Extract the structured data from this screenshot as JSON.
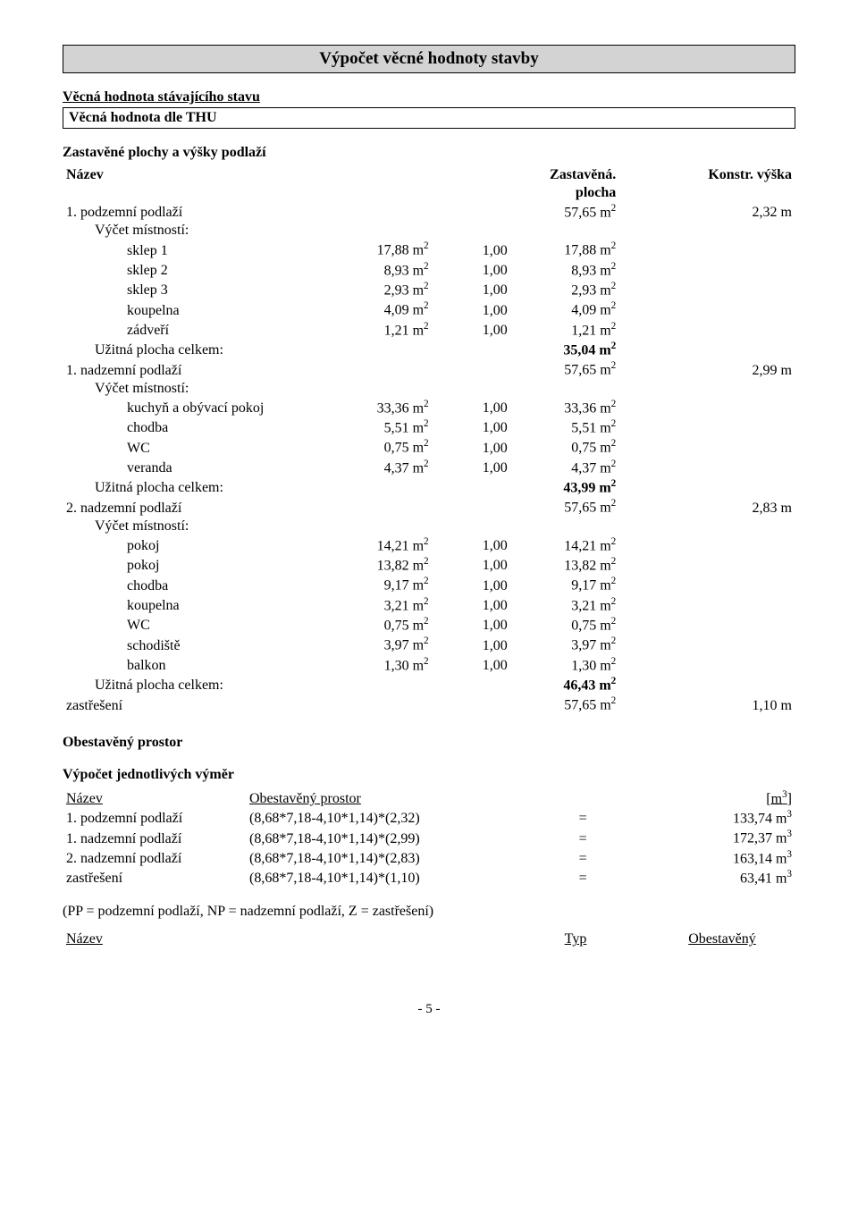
{
  "header": {
    "title": "Výpočet věcné hodnoty stavby"
  },
  "preface": {
    "line1": "Věcná hodnota stávajícího stavu",
    "box_line": "Věcná hodnota dle THU"
  },
  "areas": {
    "heading": "Zastavěné plochy a výšky podlaží",
    "col_name": "Název",
    "col_area_l1": "Zastavěná.",
    "col_area_l2": "plocha",
    "col_height": "Konstr. výška",
    "floors": [
      {
        "name": "1. podzemní podlaží",
        "area": "57,65 m²",
        "height": "2,32 m",
        "rooms_label": "Výčet místností:",
        "rooms": [
          {
            "name": "sklep 1",
            "raw": "17,88 m²",
            "coef": "1,00",
            "val": "17,88 m²"
          },
          {
            "name": "sklep 2",
            "raw": "8,93 m²",
            "coef": "1,00",
            "val": "8,93 m²"
          },
          {
            "name": "sklep 3",
            "raw": "2,93 m²",
            "coef": "1,00",
            "val": "2,93 m²"
          },
          {
            "name": "koupelna",
            "raw": "4,09 m²",
            "coef": "1,00",
            "val": "4,09 m²"
          },
          {
            "name": "zádveří",
            "raw": "1,21 m²",
            "coef": "1,00",
            "val": "1,21 m²"
          }
        ],
        "usable_label": "Užitná plocha celkem:",
        "usable_val": "35,04 m²"
      },
      {
        "name": "1. nadzemní podlaží",
        "area": "57,65 m²",
        "height": "2,99 m",
        "rooms_label": "Výčet místností:",
        "rooms": [
          {
            "name": "kuchyň a obývací pokoj",
            "raw": "33,36 m²",
            "coef": "1,00",
            "val": "33,36 m²"
          },
          {
            "name": "chodba",
            "raw": "5,51 m²",
            "coef": "1,00",
            "val": "5,51 m²"
          },
          {
            "name": "WC",
            "raw": "0,75 m²",
            "coef": "1,00",
            "val": "0,75 m²"
          },
          {
            "name": "veranda",
            "raw": "4,37 m²",
            "coef": "1,00",
            "val": "4,37 m²"
          }
        ],
        "usable_label": "Užitná plocha celkem:",
        "usable_val": "43,99 m²"
      },
      {
        "name": "2. nadzemní podlaží",
        "area": "57,65 m²",
        "height": "2,83 m",
        "rooms_label": "Výčet místností:",
        "rooms": [
          {
            "name": "pokoj",
            "raw": "14,21 m²",
            "coef": "1,00",
            "val": "14,21 m²"
          },
          {
            "name": "pokoj",
            "raw": "13,82 m²",
            "coef": "1,00",
            "val": "13,82 m²"
          },
          {
            "name": "chodba",
            "raw": "9,17 m²",
            "coef": "1,00",
            "val": "9,17 m²"
          },
          {
            "name": "koupelna",
            "raw": "3,21 m²",
            "coef": "1,00",
            "val": "3,21 m²"
          },
          {
            "name": "WC",
            "raw": "0,75 m²",
            "coef": "1,00",
            "val": "0,75 m²"
          },
          {
            "name": "schodiště",
            "raw": "3,97 m²",
            "coef": "1,00",
            "val": "3,97 m²"
          },
          {
            "name": "balkon",
            "raw": "1,30 m²",
            "coef": "1,00",
            "val": "1,30 m²"
          }
        ],
        "usable_label": "Užitná plocha celkem:",
        "usable_val": "46,43 m²"
      }
    ],
    "roof": {
      "name": "zastřešení",
      "area": "57,65 m²",
      "height": "1,10 m"
    }
  },
  "volume": {
    "heading": "Obestavěný prostor",
    "subheading": "Výpočet jednotlivých výměr",
    "col_name": "Název",
    "col_calc": "Obestavěný prostor",
    "col_unit": "[m³]",
    "rows": [
      {
        "name": "1. podzemní podlaží",
        "calc": "(8,68*7,18-4,10*1,14)*(2,32)",
        "eq": "=",
        "val": "133,74 m³"
      },
      {
        "name": "1. nadzemní podlaží",
        "calc": "(8,68*7,18-4,10*1,14)*(2,99)",
        "eq": "=",
        "val": "172,37 m³"
      },
      {
        "name": "2. nadzemní podlaží",
        "calc": "(8,68*7,18-4,10*1,14)*(2,83)",
        "eq": "=",
        "val": "163,14 m³"
      },
      {
        "name": "zastřešení",
        "calc": "(8,68*7,18-4,10*1,14)*(1,10)",
        "eq": "=",
        "val": "63,41 m³"
      }
    ]
  },
  "note": "(PP = podzemní podlaží, NP = nadzemní podlaží, Z = zastřešení)",
  "typ_table": {
    "col_name": "Název",
    "col_typ": "Typ",
    "col_ob": "Obestavěný"
  },
  "pagenum": "- 5 -"
}
